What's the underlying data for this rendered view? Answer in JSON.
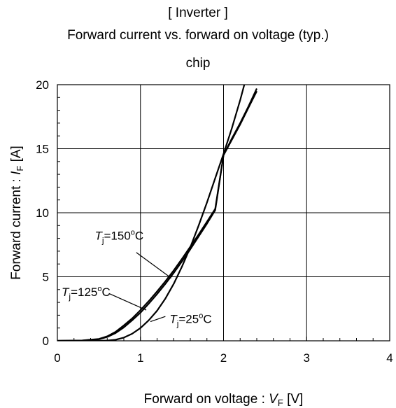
{
  "titles": {
    "line1": "[ Inverter ]",
    "line2": "Forward current  vs.  forward on voltage  (typ.)",
    "line3": "chip"
  },
  "chart_data": {
    "type": "line",
    "xlabel": "Forward on voltage : VF [V]",
    "ylabel": "Forward current : IF [A]",
    "xlim": [
      0,
      4
    ],
    "ylim": [
      0,
      20
    ],
    "xticks": [
      0,
      1,
      2,
      3,
      4
    ],
    "yticks": [
      0,
      5,
      10,
      15,
      20
    ],
    "grid": true,
    "series": [
      {
        "name": "Tj=150oC",
        "x": [
          0,
          0.3,
          0.5,
          0.6,
          0.7,
          0.8,
          0.9,
          1.0,
          1.1,
          1.2,
          1.3,
          1.4,
          1.5,
          1.6,
          1.7,
          1.8,
          1.9,
          2.0,
          2.1,
          2.2,
          2.3,
          2.4
        ],
        "y": [
          0,
          0.03,
          0.15,
          0.35,
          0.7,
          1.2,
          1.75,
          2.4,
          3.1,
          3.85,
          4.65,
          5.5,
          6.4,
          7.35,
          8.3,
          9.3,
          10.3,
          14.5,
          15.7,
          16.9,
          18.2,
          19.5
        ]
      },
      {
        "name": "Tj=125oC",
        "x": [
          0,
          0.3,
          0.5,
          0.6,
          0.7,
          0.8,
          0.9,
          1.0,
          1.1,
          1.2,
          1.3,
          1.4,
          1.5,
          1.6,
          1.7,
          1.8,
          1.9,
          2.0,
          2.1,
          2.2,
          2.3,
          2.4
        ],
        "y": [
          0,
          0.02,
          0.12,
          0.3,
          0.6,
          1.05,
          1.6,
          2.2,
          2.9,
          3.65,
          4.45,
          5.3,
          6.2,
          7.15,
          8.15,
          9.15,
          10.2,
          14.5,
          15.8,
          17.0,
          18.3,
          19.7
        ]
      },
      {
        "name": "Tj=25oC",
        "x": [
          0,
          0.5,
          0.6,
          0.7,
          0.8,
          0.9,
          1.0,
          1.1,
          1.2,
          1.3,
          1.4,
          1.5,
          1.6,
          1.7,
          1.8,
          1.9,
          2.0,
          2.1,
          2.2,
          2.25
        ],
        "y": [
          0,
          0.0,
          0.02,
          0.08,
          0.25,
          0.55,
          1.0,
          1.6,
          2.35,
          3.3,
          4.45,
          5.8,
          7.3,
          9.0,
          10.8,
          12.7,
          14.6,
          16.6,
          18.8,
          20.0
        ]
      }
    ],
    "annotations": [
      {
        "base": "T",
        "sub": "j",
        "rest": "=150",
        "sup": "o",
        "end": "C"
      },
      {
        "base": "T",
        "sub": "j",
        "rest": "=125",
        "sup": "o",
        "end": "C"
      },
      {
        "base": "T",
        "sub": "j",
        "rest": "=25",
        "sup": "o",
        "end": "C"
      }
    ]
  },
  "axis_text": {
    "x": {
      "pre": "Forward on voltage : ",
      "var": "V",
      "sub": "F",
      "unit": " [V]"
    },
    "y": {
      "pre": "Forward current : ",
      "var": "I",
      "sub": "F",
      "unit": " [A]"
    }
  }
}
